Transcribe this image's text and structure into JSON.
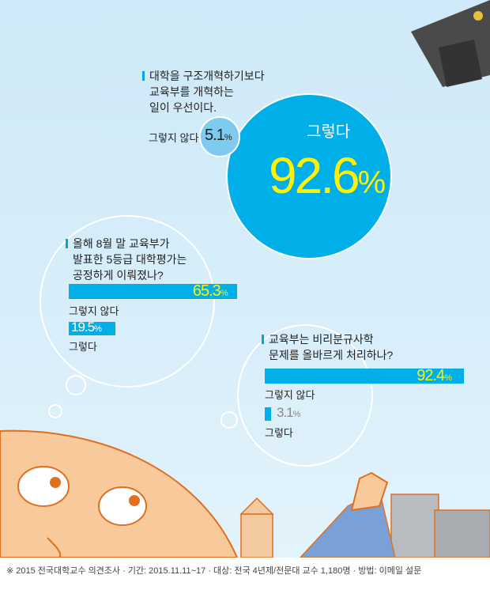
{
  "chart_data": [
    {
      "type": "bubble",
      "question": "대학을 구조개혁하기보다 교육부를 개혁하는 일이 우선이다.",
      "question_lines": [
        "대학을 구조개혁하기보다",
        "교육부를 개혁하는",
        "일이 우선이다."
      ],
      "categories": [
        "그렇다",
        "그렇지 않다"
      ],
      "values": [
        92.6,
        5.1
      ],
      "labels": [
        "92.6",
        "5.1"
      ],
      "unit": "%"
    },
    {
      "type": "bar",
      "question": "올해 8월 말 교육부가 발표한 5등급 대학평가는 공정하게 이뤄졌나?",
      "question_lines": [
        "올해 8월 말 교육부가",
        "발표한 5등급 대학평가는",
        "공정하게 이뤄졌나?"
      ],
      "categories": [
        "그렇지 않다",
        "그렇다"
      ],
      "values": [
        65.3,
        19.5
      ],
      "labels": [
        "65.3",
        "19.5"
      ],
      "unit": "%"
    },
    {
      "type": "bar",
      "question": "교육부는 비리분규사학 문제를 올바르게 처리하나?",
      "question_lines": [
        "교육부는 비리분규사학",
        "문제를 올바르게 처리하나?"
      ],
      "categories": [
        "그렇지 않다",
        "그렇다"
      ],
      "values": [
        92.4,
        3.1
      ],
      "labels": [
        "92.4",
        "3.1"
      ],
      "unit": "%"
    }
  ],
  "colors": {
    "accent": "#00aee8",
    "highlight": "#fff200",
    "background": "#d4ecf9",
    "small_bubble": "#7fcbef"
  },
  "footer": "※ 2015 전국대학교수 의견조사 · 기간: 2015.11.11~17 · 대상: 전국 4년제/전문대 교수 1,180명 · 방법: 이메일 설문"
}
